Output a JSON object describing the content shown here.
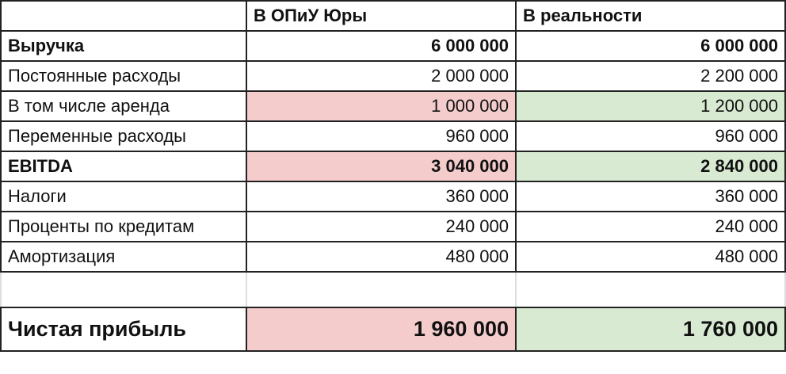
{
  "table": {
    "headers": [
      "",
      "В ОПиУ Юры",
      "В реальности"
    ],
    "rows": [
      {
        "label": "Выручка",
        "yura": "6 000 000",
        "real": "6 000 000"
      },
      {
        "label": "Постоянные расходы",
        "yura": "2 000 000",
        "real": "2 200 000"
      },
      {
        "label": "В том числе аренда",
        "yura": "1 000 000",
        "real": "1 200 000"
      },
      {
        "label": "Переменные расходы",
        "yura": "960 000",
        "real": "960 000"
      },
      {
        "label": "EBITDA",
        "yura": "3 040 000",
        "real": "2 840 000"
      },
      {
        "label": "Налоги",
        "yura": "360 000",
        "real": "360 000"
      },
      {
        "label": "Проценты по кредитам",
        "yura": "240 000",
        "real": "240 000"
      },
      {
        "label": "Амортизация",
        "yura": "480 000",
        "real": "480 000"
      },
      {
        "label": "",
        "yura": "",
        "real": ""
      },
      {
        "label": "Чистая прибыль",
        "yura": "1 960 000",
        "real": "1 760 000"
      }
    ]
  },
  "colors": {
    "highlight_red": "#f4cccc",
    "highlight_green": "#d9ead3",
    "border": "#222222"
  }
}
